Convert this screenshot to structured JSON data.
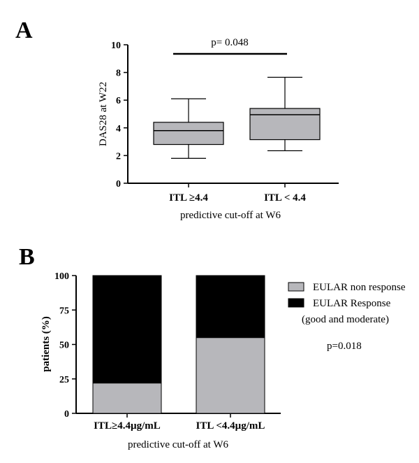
{
  "chart_data": [
    {
      "panel": "A",
      "type": "box",
      "xlabel": "predictive cut-off at W6",
      "ylabel": "DAS28 at W22",
      "ylim": [
        0,
        10
      ],
      "yticks": [
        "0",
        "2",
        "4",
        "6",
        "8",
        "10"
      ],
      "categories": [
        "ITL ≥4.4",
        "ITL < 4.4"
      ],
      "boxes": [
        {
          "category": "ITL ≥4.4",
          "min": 1.8,
          "q1": 2.8,
          "median": 3.8,
          "q3": 4.4,
          "max": 6.1
        },
        {
          "category": "ITL < 4.4",
          "min": 2.35,
          "q1": 3.15,
          "median": 4.95,
          "q3": 5.4,
          "max": 7.65
        }
      ],
      "annotation": "p= 0.048",
      "box_color": "#b7b7bb"
    },
    {
      "panel": "B",
      "type": "bar",
      "stacked": true,
      "xlabel": "predictive cut-off at W6",
      "ylabel": "patients (%)",
      "ylim": [
        0,
        100
      ],
      "yticks": [
        "0",
        "25",
        "50",
        "75",
        "100"
      ],
      "categories": [
        "ITL≥4.4µg/mL",
        "ITL <4.4µg/mL"
      ],
      "series": [
        {
          "name": "EULAR non response",
          "values": [
            22,
            55
          ],
          "color": "#b7b7bb"
        },
        {
          "name": "EULAR Response",
          "values": [
            78,
            45
          ],
          "color": "#000000"
        }
      ],
      "legend": {
        "placement": "right",
        "items": [
          "EULAR non response",
          "EULAR Response"
        ],
        "note": "(good and moderate)"
      },
      "annotation": "p=0.018"
    }
  ]
}
